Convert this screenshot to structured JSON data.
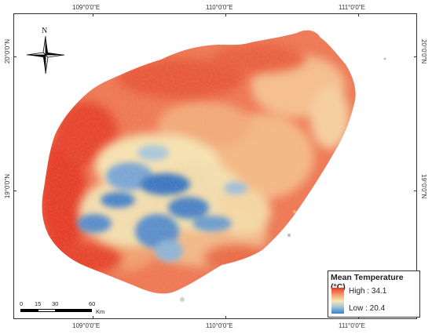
{
  "map": {
    "top_ticks": [
      "109°0'0\"E",
      "110°0'0\"E",
      "111°0'0\"E"
    ],
    "bottom_ticks": [
      "109°0'0\"E",
      "110°0'0\"E",
      "111°0'0\"E"
    ],
    "left_ticks": [
      "20°0'0\"N",
      "19°0'0\"N"
    ],
    "right_ticks": [
      "20°0'0\"N",
      "19°0'0\"N"
    ],
    "colors": {
      "high": "#e8392a",
      "mid": "#f6e9b5",
      "low": "#3f7ec6"
    }
  },
  "north_arrow": {
    "label": "N"
  },
  "legend": {
    "title": "Mean Temperature (°C)",
    "high_label": "High : 34.1",
    "low_label": "Low : 20.4"
  },
  "scale_bar": {
    "labels": [
      "0",
      "15",
      "30",
      "60"
    ],
    "unit": "Km"
  }
}
